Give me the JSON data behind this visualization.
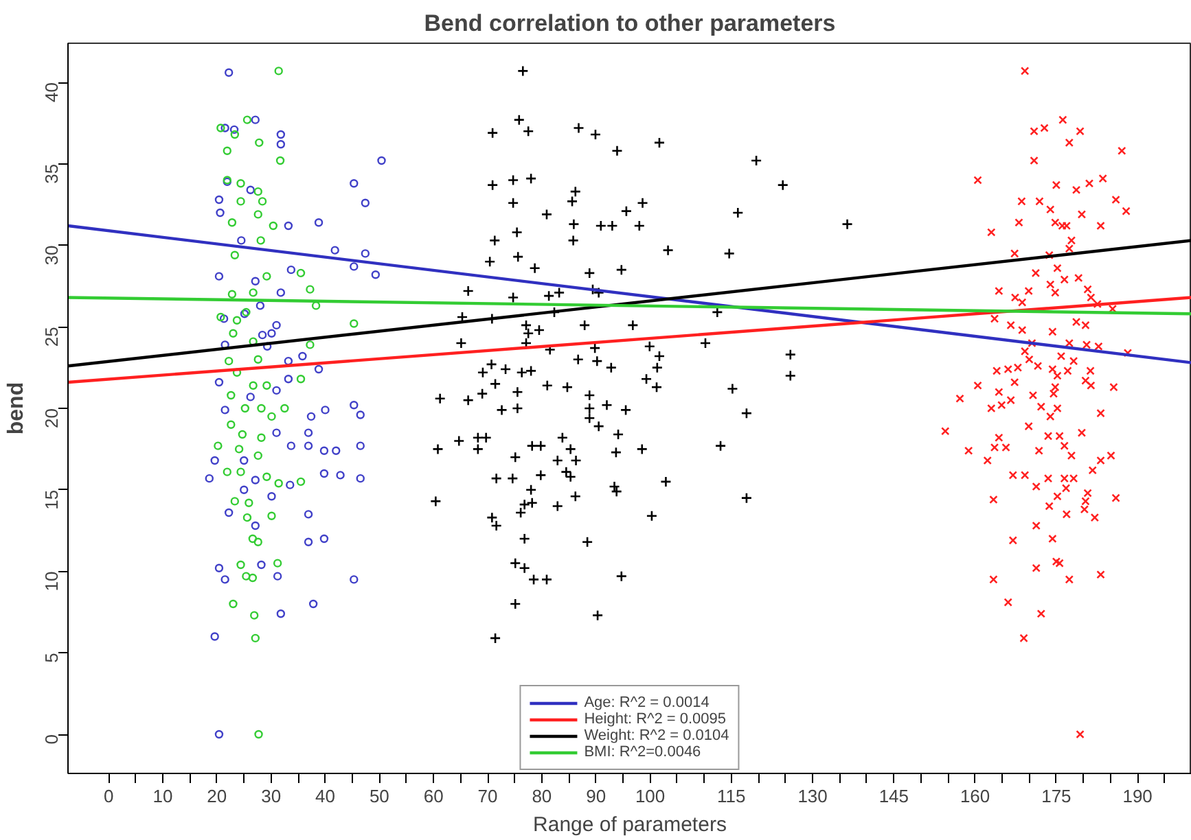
{
  "chart_data": {
    "type": "scatter",
    "title": "Bend correlation to other parameters",
    "xlabel": "Range of parameters",
    "ylabel": "bend",
    "xlim": [
      -7.5,
      200
    ],
    "ylim": [
      -2.4,
      42.4
    ],
    "xticks": [
      0,
      10,
      20,
      30,
      40,
      50,
      60,
      70,
      80,
      90,
      100,
      115,
      130,
      145,
      160,
      175,
      190,
      {
        "value": 5,
        "label": null
      },
      {
        "value": 15,
        "label": null
      },
      {
        "value": 25,
        "label": null
      },
      {
        "value": 35,
        "label": null
      },
      {
        "value": 45,
        "label": null
      },
      {
        "value": 55,
        "label": null
      },
      {
        "value": 65,
        "label": null
      },
      {
        "value": 75,
        "label": null
      },
      {
        "value": 85,
        "label": null
      },
      {
        "value": 95,
        "label": null
      },
      {
        "value": 105,
        "label": null
      },
      {
        "value": 110,
        "label": null
      },
      {
        "value": 120,
        "label": null
      },
      {
        "value": 125,
        "label": null
      },
      {
        "value": 135,
        "label": null
      },
      {
        "value": 140,
        "label": null
      },
      {
        "value": 150,
        "label": null
      },
      {
        "value": 155,
        "label": null
      },
      {
        "value": 165,
        "label": null
      },
      {
        "value": 170,
        "label": null
      },
      {
        "value": 180,
        "label": null
      },
      {
        "value": 185,
        "label": null
      },
      {
        "value": 195,
        "label": null
      }
    ],
    "yticks": [
      0,
      5,
      10,
      15,
      20,
      25,
      30,
      35,
      40
    ],
    "grid": false,
    "legend": "bottom",
    "series": [
      {
        "marker": "circle",
        "color": "#4040c8",
        "x": [
          22.2,
          27.1,
          21.5,
          23.2,
          31.8,
          31.8,
          50.4,
          45.3,
          47.4,
          21.9,
          20.4,
          20.6,
          26.2,
          33.2,
          38.8,
          24.5,
          41.8,
          47.4,
          45.3,
          49.3,
          20.4,
          27.1,
          33.7,
          31.8,
          25.1,
          28.0,
          31.0,
          21.3,
          28.4,
          30.1,
          21.5,
          29.3,
          33.2,
          35.8,
          38.8,
          20.4,
          26.2,
          31.0,
          33.2,
          21.5,
          37.4,
          40.0,
          45.3,
          46.5,
          31.0,
          36.9,
          33.7,
          36.9,
          39.8,
          42.0,
          46.5,
          19.6,
          25.0,
          18.6,
          27.1,
          39.8,
          42.8,
          46.5,
          33.5,
          25.0,
          30.1,
          22.2,
          36.9,
          27.1,
          36.9,
          39.8,
          20.4,
          21.5,
          28.2,
          31.2,
          45.3,
          37.8,
          31.8,
          19.6,
          20.4
        ],
        "values": [
          40.6,
          37.7,
          37.2,
          37.1,
          36.8,
          36.2,
          35.2,
          33.8,
          32.6,
          33.9,
          32.8,
          32.0,
          33.4,
          31.2,
          31.4,
          30.3,
          29.7,
          29.5,
          28.7,
          28.2,
          28.1,
          27.8,
          28.5,
          27.1,
          25.8,
          26.3,
          25.1,
          25.5,
          24.5,
          24.6,
          23.9,
          23.8,
          22.9,
          23.2,
          22.4,
          21.6,
          20.7,
          21.1,
          21.8,
          19.9,
          19.5,
          19.9,
          20.2,
          19.6,
          18.5,
          18.5,
          17.7,
          17.7,
          17.4,
          17.4,
          17.7,
          16.8,
          16.8,
          15.7,
          15.6,
          16.0,
          15.9,
          15.7,
          15.3,
          15.0,
          14.6,
          13.6,
          13.5,
          12.8,
          11.8,
          12.0,
          10.2,
          9.5,
          10.4,
          9.7,
          9.5,
          8.0,
          7.4,
          6.0,
          0.0
        ]
      },
      {
        "marker": "circle",
        "color": "#33cc33",
        "x": [
          31.4,
          25.6,
          20.7,
          23.3,
          27.8,
          21.9,
          31.7,
          21.9,
          24.4,
          27.6,
          28.4,
          24.4,
          22.8,
          27.6,
          30.4,
          28.1,
          23.3,
          29.2,
          35.5,
          37.2,
          22.8,
          26.7,
          20.7,
          23.7,
          25.4,
          38.3,
          45.3,
          23.0,
          26.7,
          37.2,
          27.6,
          22.2,
          35.5,
          23.7,
          26.7,
          29.2,
          22.6,
          25.2,
          28.2,
          32.5,
          30.1,
          22.6,
          24.7,
          28.2,
          20.2,
          24.1,
          27.6,
          21.9,
          24.4,
          29.2,
          31.4,
          23.3,
          25.9,
          35.5,
          25.6,
          30.1,
          26.6,
          27.6,
          24.4,
          31.2,
          25.4,
          26.6,
          23.0,
          26.9,
          27.1,
          27.7
        ],
        "values": [
          40.7,
          37.7,
          37.2,
          36.8,
          36.3,
          35.8,
          35.2,
          34.0,
          33.8,
          33.3,
          32.7,
          32.7,
          31.4,
          31.9,
          31.2,
          30.3,
          29.4,
          28.1,
          28.3,
          27.3,
          27.0,
          27.1,
          25.6,
          25.4,
          25.9,
          26.3,
          25.2,
          24.6,
          24.1,
          23.9,
          23.0,
          22.9,
          21.8,
          22.2,
          21.4,
          21.4,
          20.8,
          20.0,
          20.0,
          20.0,
          19.5,
          19.0,
          18.4,
          18.2,
          17.7,
          17.5,
          17.1,
          16.1,
          16.1,
          15.8,
          15.4,
          14.3,
          14.2,
          15.5,
          13.3,
          13.4,
          12.0,
          11.8,
          10.4,
          10.5,
          9.7,
          9.6,
          8.0,
          7.3,
          5.9,
          0.0
        ]
      },
      {
        "marker": "cross",
        "color": "#000000",
        "x": [
          76.5,
          75.8,
          70.9,
          77.5,
          86.8,
          89.9,
          93.9,
          101.7,
          119.6,
          70.9,
          74.7,
          78.0,
          74.7,
          86.2,
          85.6,
          98.6,
          124.5,
          116.2,
          80.9,
          85.9,
          90.9,
          93.0,
          95.6,
          98.0,
          136.4,
          75.4,
          71.3,
          85.8,
          103.3,
          114.6,
          70.4,
          75.6,
          78.7,
          88.8,
          94.7,
          66.4,
          74.7,
          81.3,
          83.2,
          89.4,
          90.5,
          65.3,
          70.8,
          82.3,
          112.4,
          77.1,
          79.5,
          87.9,
          96.8,
          77.5,
          65.1,
          77.1,
          81.5,
          89.8,
          99.9,
          110.2,
          101.7,
          125.9,
          70.7,
          86.7,
          90.2,
          92.8,
          101.3,
          69.1,
          73.3,
          76.3,
          78.0,
          125.9,
          71.4,
          81.0,
          84.7,
          99.3,
          101.2,
          115.2,
          61.2,
          66.4,
          69.0,
          75.5,
          88.8,
          72.6,
          75.5,
          88.8,
          92.0,
          95.5,
          117.8,
          88.8,
          90.5,
          64.7,
          68.2,
          69.7,
          83.8,
          94.1,
          60.8,
          68.2,
          78.2,
          79.8,
          85.3,
          93.7,
          98.5,
          113.0,
          75.1,
          82.9,
          86.3,
          71.6,
          74.6,
          79.8,
          84.5,
          85.3,
          78.0,
          86.2,
          93.4,
          93.8,
          102.9,
          60.4,
          76.8,
          78.2,
          82.9,
          117.8,
          76.1,
          70.8,
          71.6,
          100.3,
          76.8,
          88.4,
          75.1,
          76.8,
          78.5,
          80.9,
          94.7,
          75.1,
          90.3,
          71.4
        ],
        "values": [
          40.7,
          37.7,
          36.9,
          37.0,
          37.2,
          36.8,
          35.8,
          36.3,
          35.2,
          33.7,
          34.0,
          34.1,
          32.6,
          33.3,
          32.7,
          32.6,
          33.7,
          32.0,
          31.9,
          31.3,
          31.2,
          31.2,
          32.1,
          31.2,
          31.3,
          30.8,
          30.3,
          30.3,
          29.7,
          29.5,
          29.0,
          29.3,
          28.6,
          28.3,
          28.5,
          27.2,
          26.8,
          26.9,
          27.1,
          27.3,
          27.1,
          25.6,
          25.5,
          25.9,
          25.9,
          25.1,
          24.8,
          25.1,
          25.1,
          24.6,
          24.0,
          24.0,
          23.6,
          23.7,
          23.8,
          24.0,
          23.2,
          23.3,
          22.7,
          23.0,
          22.9,
          22.5,
          22.5,
          22.2,
          22.4,
          22.2,
          22.3,
          22.0,
          21.5,
          21.4,
          21.3,
          21.8,
          21.3,
          21.2,
          20.6,
          20.5,
          20.9,
          21.0,
          20.8,
          19.9,
          20.0,
          20.0,
          20.2,
          19.9,
          19.7,
          19.4,
          18.9,
          18.0,
          18.2,
          18.2,
          18.2,
          18.4,
          17.5,
          17.5,
          17.7,
          17.7,
          17.5,
          17.3,
          17.5,
          17.7,
          17.0,
          16.8,
          16.8,
          15.7,
          15.7,
          15.9,
          16.1,
          15.8,
          15.0,
          14.6,
          15.2,
          14.9,
          15.5,
          14.3,
          14.1,
          14.2,
          14.0,
          14.5,
          13.6,
          13.3,
          12.8,
          13.4,
          12.0,
          11.8,
          10.5,
          10.2,
          9.5,
          9.5,
          9.7,
          8.0,
          7.3,
          5.9
        ]
      },
      {
        "marker": "x",
        "color": "#ff2020",
        "x": [
          169.2,
          170.9,
          172.8,
          176.2,
          179.4,
          177.4,
          187.1,
          170.9,
          160.5,
          175.0,
          178.7,
          181.1,
          183.6,
          168.6,
          171.9,
          173.9,
          186.0,
          187.9,
          168.1,
          163.0,
          174.8,
          176.1,
          179.7,
          183.2,
          176.9,
          177.8,
          177.4,
          167.3,
          173.7,
          175.2,
          171.2,
          176.5,
          179.1,
          164.4,
          167.4,
          168.7,
          169.9,
          173.9,
          174.8,
          180.8,
          181.4,
          182.6,
          185.4,
          163.6,
          166.6,
          168.7,
          174.3,
          178.7,
          180.4,
          170.5,
          169.2,
          177.4,
          180.6,
          182.8,
          188.2,
          170.0,
          171.6,
          175.9,
          178.2,
          164.0,
          166.1,
          167.9,
          174.3,
          177.1,
          181.3,
          175.2,
          180.4,
          160.5,
          167.3,
          174.8,
          181.4,
          185.6,
          157.2,
          164.4,
          166.6,
          170.7,
          174.5,
          163.0,
          164.9,
          172.2,
          175.2,
          173.9,
          183.2,
          154.5,
          169.9,
          173.5,
          175.6,
          179.7,
          158.8,
          162.3,
          163.6,
          164.4,
          165.7,
          171.8,
          176.5,
          177.8,
          185.1,
          183.2,
          181.7,
          167.0,
          169.2,
          171.3,
          173.5,
          176.5,
          178.2,
          175.2,
          176.8,
          180.8,
          173.7,
          180.4,
          180.2,
          176.9,
          182.1,
          186.0,
          163.4,
          171.3,
          167.0,
          174.3,
          171.3,
          175.0,
          175.6,
          163.4,
          177.4,
          183.2,
          166.1,
          172.2,
          169.0,
          179.4
        ],
        "values": [
          40.7,
          37.0,
          37.2,
          37.7,
          37.0,
          36.3,
          35.8,
          35.2,
          34.0,
          33.7,
          33.4,
          33.8,
          34.1,
          32.7,
          32.7,
          32.2,
          32.8,
          32.1,
          31.4,
          30.8,
          31.4,
          31.2,
          31.9,
          31.2,
          31.2,
          30.3,
          29.8,
          29.5,
          29.4,
          28.6,
          28.3,
          27.9,
          28.0,
          27.2,
          26.8,
          26.5,
          27.2,
          27.6,
          27.1,
          27.3,
          26.8,
          26.4,
          26.1,
          25.5,
          25.1,
          24.8,
          24.7,
          25.3,
          25.1,
          24.0,
          23.5,
          24.0,
          23.9,
          23.8,
          23.4,
          23.0,
          22.6,
          23.2,
          22.9,
          22.3,
          22.4,
          22.5,
          22.4,
          22.3,
          22.3,
          22.0,
          21.7,
          21.4,
          21.6,
          21.3,
          21.4,
          21.3,
          20.6,
          21.0,
          20.5,
          20.8,
          20.9,
          20.0,
          20.2,
          20.1,
          20.0,
          19.5,
          19.7,
          18.6,
          18.9,
          18.3,
          18.3,
          18.5,
          17.4,
          16.8,
          17.6,
          18.2,
          17.6,
          17.4,
          17.7,
          17.1,
          17.1,
          16.8,
          16.2,
          15.9,
          15.9,
          15.2,
          15.7,
          15.7,
          15.7,
          14.6,
          15.1,
          14.8,
          14.0,
          14.3,
          13.8,
          13.5,
          13.3,
          14.5,
          14.4,
          12.8,
          11.9,
          12.0,
          10.2,
          10.6,
          10.5,
          9.5,
          9.5,
          9.8,
          8.1,
          7.4,
          5.9,
          0.0
        ]
      },
      {
        "type": "line",
        "name": "Age: R^2 = 0.0014",
        "color": "#3030c0",
        "x": [
          -7.5,
          200
        ],
        "values": [
          31.2,
          22.8
        ]
      },
      {
        "type": "line",
        "name": "Height: R^2 = 0.0095",
        "color": "#ff2020",
        "x": [
          -7.5,
          200
        ],
        "values": [
          21.6,
          26.8
        ]
      },
      {
        "type": "line",
        "name": "Weight: R^2 = 0.0104",
        "color": "#000000",
        "x": [
          -7.5,
          200
        ],
        "values": [
          22.6,
          30.3
        ]
      },
      {
        "type": "line",
        "name": "BMI: R^2=0.0046",
        "color": "#33cc33",
        "x": [
          -7.5,
          200
        ],
        "values": [
          26.8,
          25.8
        ]
      }
    ]
  }
}
